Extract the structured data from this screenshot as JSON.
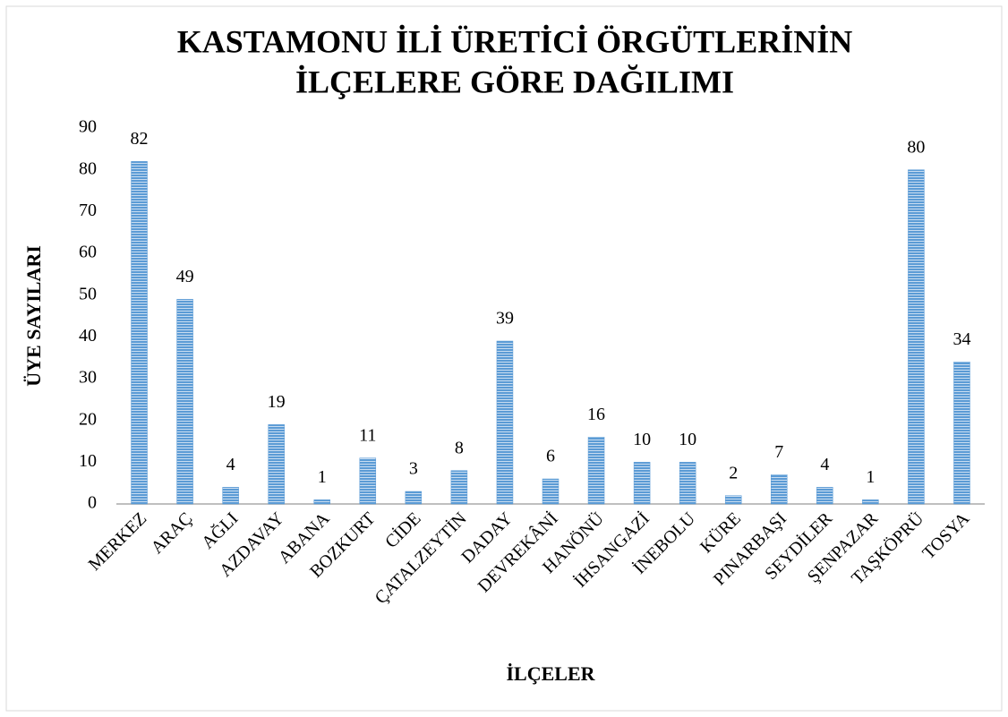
{
  "chart_data": {
    "type": "bar",
    "title": [
      "KASTAMONU İLİ ÜRETİCİ ÖRGÜTLERİNİN",
      "İLÇELERE GÖRE DAĞILIMI"
    ],
    "x_label": "İLÇELER",
    "y_label": "ÜYE SAYILARI",
    "categories": [
      "MERKEZ",
      "ARAÇ",
      "AĞLI",
      "AZDAVAY",
      "ABANA",
      "BOZKURT",
      "CİDE",
      "ÇATALZEYTİN",
      "DADAY",
      "DEVREKÂNİ",
      "HANÖNÜ",
      "İHSANGAZİ",
      "İNEBOLU",
      "KÜRE",
      "PINARBAŞI",
      "SEYDİLER",
      "ŞENPAZAR",
      "TAŞKÖPRÜ",
      "TOSYA"
    ],
    "values": [
      82,
      49,
      4,
      19,
      1,
      11,
      3,
      8,
      39,
      6,
      16,
      10,
      10,
      2,
      7,
      4,
      1,
      80,
      34
    ],
    "color": "#5b9bd5",
    "ylim": [
      0,
      90
    ],
    "yticks": [
      0,
      10,
      20,
      30,
      40,
      50,
      60,
      70,
      80,
      90
    ],
    "grid": false
  }
}
